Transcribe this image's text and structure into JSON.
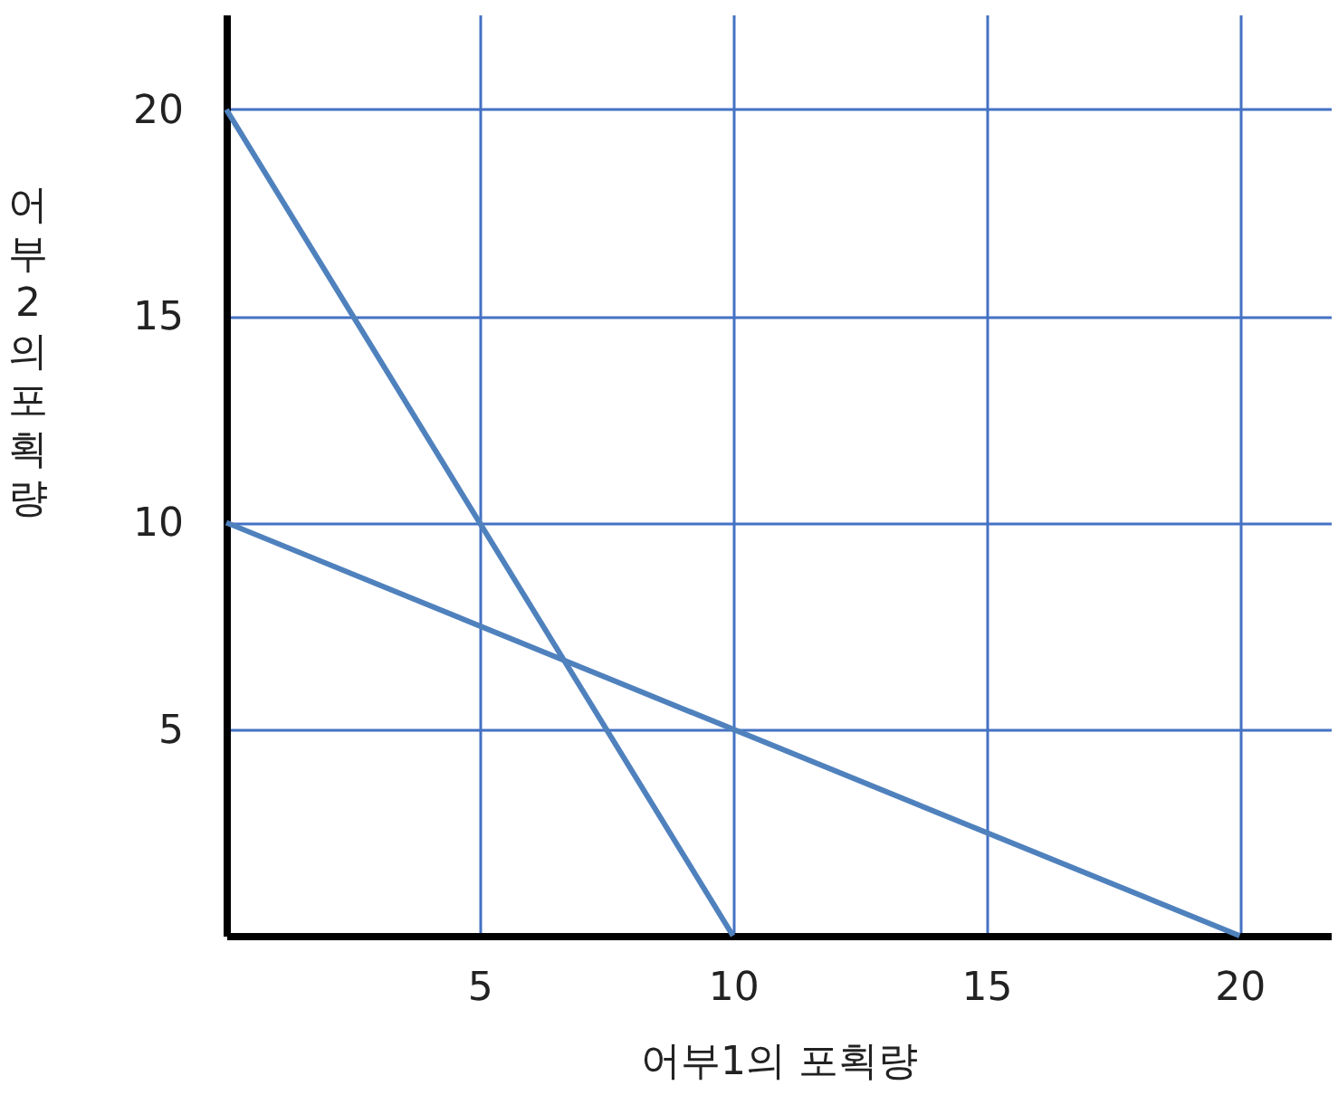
{
  "chart_data": {
    "type": "line",
    "xlabel": "어부1의 포획량",
    "ylabel": "어부2의 포획량",
    "series": [
      {
        "color": "#4f81bd",
        "x": [
          0,
          10
        ],
        "values": [
          20,
          0
        ]
      },
      {
        "color": "#4f81bd",
        "x": [
          0,
          20
        ],
        "values": [
          10,
          0
        ]
      }
    ],
    "xlim": [
      0,
      21.8
    ],
    "ylim": [
      0,
      22.3
    ],
    "xticks": [
      5,
      10,
      15,
      20
    ],
    "yticks": [
      5,
      10,
      15,
      20
    ],
    "grid": true,
    "legend": false,
    "marker": "none",
    "line_style": "solid"
  }
}
